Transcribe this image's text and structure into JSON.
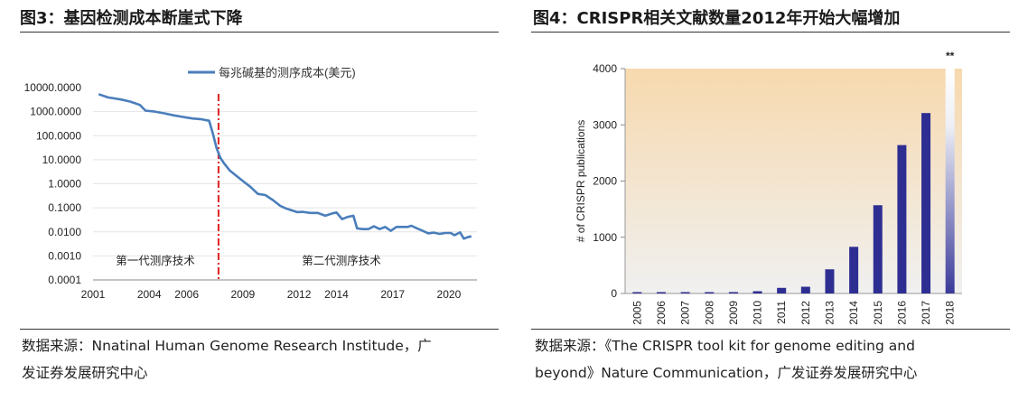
{
  "left_panel": {
    "title": "图3：基因检测成本断崖式下降",
    "source_line1": "数据来源：Nnatinal Human Genome Research Institude，广",
    "source_line2": "发证券发展研究中心"
  },
  "right_panel": {
    "title": "图4：CRISPR相关文献数量2012年开始大幅增加",
    "source_line1": "数据来源：《The CRISPR tool kit for genome editing and",
    "source_line2": "beyond》Nature Communication，广发证券发展研究中心"
  },
  "chart_data": [
    {
      "type": "line",
      "title": "",
      "legend": "每兆碱基的测序成本(美元)",
      "legend_position": "top-right",
      "y_scale": "log",
      "ylim": [
        0.0001,
        10000
      ],
      "xlim": [
        2001,
        2021.5
      ],
      "y_ticks": [
        "10000.0000",
        "1000.0000",
        "100.0000",
        "10.0000",
        "1.0000",
        "0.1000",
        "0.0100",
        "0.0010",
        "0.0001"
      ],
      "x_ticks": [
        "2001",
        "2004",
        "2006",
        "2009",
        "2012",
        "2014",
        "2017",
        "2020"
      ],
      "x_tick_values": [
        2001,
        2004,
        2006,
        2009,
        2012,
        2014,
        2017,
        2020
      ],
      "divider_x": 2007.7,
      "region_labels": [
        "第一代测序技术",
        "第二代测序技术"
      ],
      "color": "#4a7ebb",
      "series": [
        {
          "x": [
            2001.3,
            2001.8,
            2002.5,
            2003.0,
            2003.5,
            2003.8,
            2004.3,
            2004.8,
            2005.3,
            2005.8,
            2006.3,
            2006.8,
            2007.2,
            2007.4,
            2007.6,
            2007.8,
            2008.0,
            2008.3,
            2008.6,
            2009.0,
            2009.4,
            2009.8,
            2010.2,
            2010.6,
            2011.0,
            2011.3,
            2011.6,
            2011.9,
            2012.2,
            2012.6,
            2013.0,
            2013.4,
            2013.8,
            2014.0,
            2014.3,
            2014.6,
            2014.9,
            2015.1,
            2015.4,
            2015.7,
            2016.0,
            2016.3,
            2016.6,
            2016.9,
            2017.2,
            2017.5,
            2017.8,
            2018.0,
            2018.3,
            2018.6,
            2018.9,
            2019.2,
            2019.5,
            2019.8,
            2020.1,
            2020.3,
            2020.6,
            2020.8,
            2021.0,
            2021.2
          ],
          "y": [
            5300,
            3900,
            3200,
            2600,
            1900,
            1100,
            1000,
            850,
            700,
            600,
            520,
            480,
            420,
            120,
            30,
            12,
            7,
            3.6,
            2.3,
            1.3,
            0.75,
            0.38,
            0.34,
            0.21,
            0.12,
            0.094,
            0.079,
            0.066,
            0.068,
            0.061,
            0.061,
            0.047,
            0.059,
            0.064,
            0.034,
            0.042,
            0.047,
            0.014,
            0.013,
            0.013,
            0.017,
            0.013,
            0.016,
            0.011,
            0.016,
            0.016,
            0.016,
            0.018,
            0.014,
            0.011,
            0.0087,
            0.0093,
            0.0082,
            0.009,
            0.009,
            0.0072,
            0.0095,
            0.0052,
            0.006,
            0.0065
          ]
        }
      ]
    },
    {
      "type": "bar",
      "title": "",
      "ylabel": "# of CRISPR publications",
      "ylim": [
        0,
        4000
      ],
      "y_ticks": [
        0,
        1000,
        2000,
        3000,
        4000
      ],
      "categories": [
        "2005",
        "2006",
        "2007",
        "2008",
        "2009",
        "2010",
        "2011",
        "2012",
        "2013",
        "2014",
        "2015",
        "2016",
        "2017",
        "2018"
      ],
      "values": [
        2,
        3,
        5,
        20,
        25,
        40,
        100,
        120,
        430,
        830,
        1570,
        2640,
        3210,
        4000
      ],
      "annotation": "**",
      "annotation_category": "2018",
      "bar_color": "#2e2e92",
      "background_gradient": [
        "#f7d9ae",
        "#f0f0f0"
      ]
    }
  ]
}
